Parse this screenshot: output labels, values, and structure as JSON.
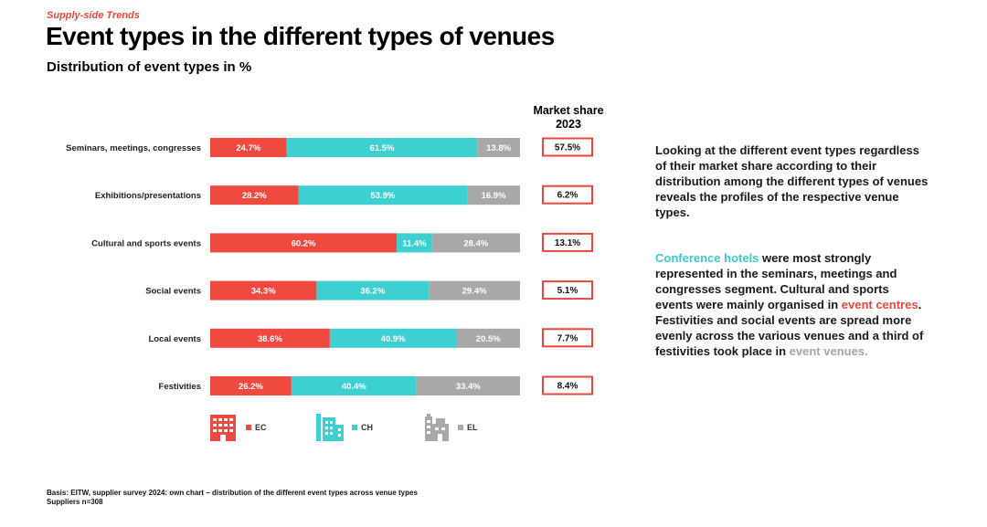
{
  "header": {
    "kicker": "Supply-side Trends",
    "title": "Event types in the different types of venues",
    "subtitle": "Distribution of event types in %"
  },
  "market_share_header": {
    "line1": "Market share",
    "line2": "2023"
  },
  "colors": {
    "EC": "#f0493f",
    "CH": "#3ecfd0",
    "EL": "#a8a8a8",
    "box_border": "#e8473f"
  },
  "chart_data": {
    "type": "bar",
    "orientation": "horizontal",
    "stacked": true,
    "title": "Event types in the different types of venues",
    "subtitle": "Distribution of event types in %",
    "xlabel": "",
    "ylabel": "",
    "xlim": [
      0,
      100
    ],
    "categories": [
      "Seminars, meetings, congresses",
      "Exhibitions/presentations",
      "Cultural and sports events",
      "Social events",
      "Local events",
      "Festivities"
    ],
    "series": [
      {
        "name": "EC",
        "values": [
          24.7,
          28.2,
          60.2,
          34.3,
          38.6,
          26.2
        ]
      },
      {
        "name": "CH",
        "values": [
          61.5,
          53.9,
          11.4,
          36.2,
          40.9,
          40.4
        ]
      },
      {
        "name": "EL",
        "values": [
          13.8,
          16.9,
          28.4,
          29.4,
          20.5,
          33.4
        ]
      }
    ],
    "data_labels": [
      [
        "24.7%",
        "61.5%",
        "13.8%"
      ],
      [
        "28.2%",
        "53.9%",
        "16.9%"
      ],
      [
        "60.2%",
        "11.4%",
        "28.4%"
      ],
      [
        "34.3%",
        "36.2%",
        "29.4%"
      ],
      [
        "38.6%",
        "40.9%",
        "20.5%"
      ],
      [
        "26.2%",
        "40.4%",
        "33.4%"
      ]
    ],
    "market_share_2023": [
      "57.5%",
      "6.2%",
      "13.1%",
      "5.1%",
      "7.7%",
      "8.4%"
    ],
    "legend": [
      "EC",
      "CH",
      "EL"
    ],
    "legend_position": "bottom"
  },
  "legend": [
    {
      "key": "EC",
      "label": "EC",
      "icon": "event-centre-building-icon"
    },
    {
      "key": "CH",
      "label": "CH",
      "icon": "conference-hotel-building-icon"
    },
    {
      "key": "EL",
      "label": "EL",
      "icon": "event-location-building-icon"
    }
  ],
  "side_text": {
    "p1": "Looking at the different event types regardless of their market share according to their distribution among the different types of venues reveals the profiles of the respective venue types.",
    "p2_hl1": "Conference hotels",
    "p2_t1": " were most strongly represented in the seminars, meetings and congresses segment. Cultural and sports events were mainly organised in ",
    "p2_hl2": "event centres",
    "p2_t2": ". Festivities and social events are spread more evenly across the various venues and a third of festivities took place in ",
    "p2_hl3": "event venues."
  },
  "footer": {
    "line1": "Basis: EITW, supplier survey 2024: own chart – distribution of the different event types across venue types",
    "line2": "Suppliers n=308"
  }
}
